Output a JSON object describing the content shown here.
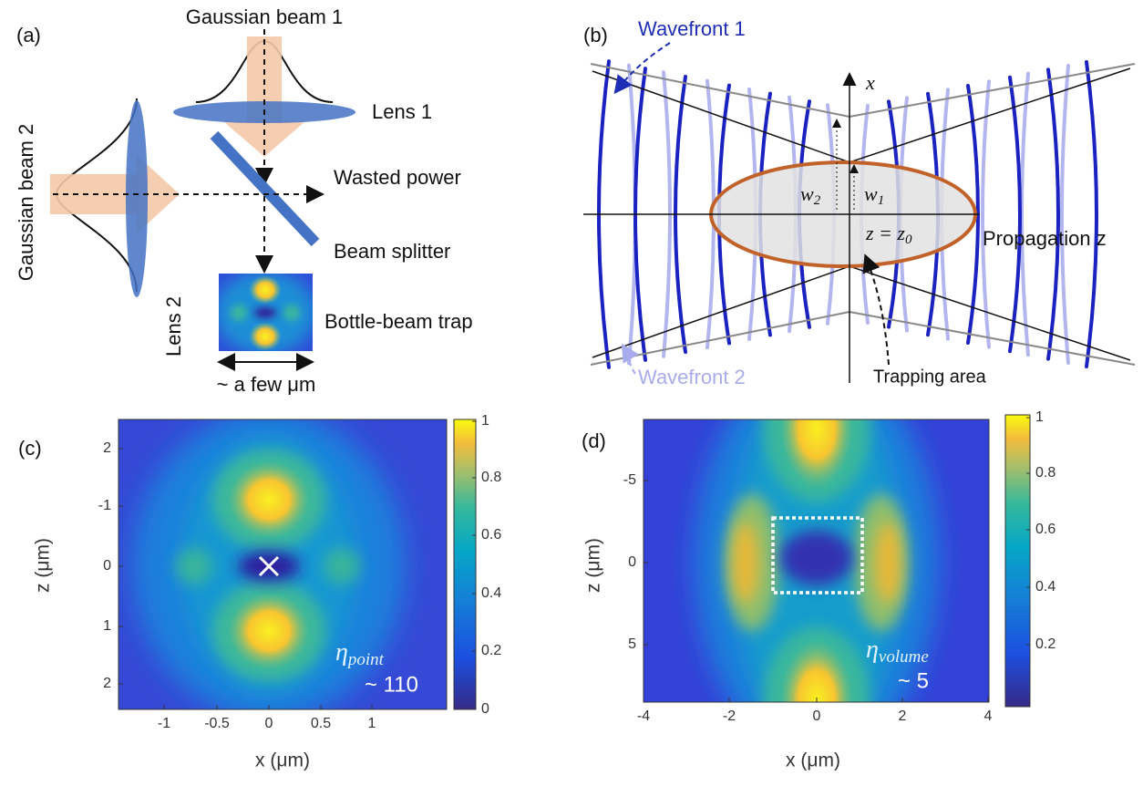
{
  "panel_a": {
    "label": "(a)",
    "gaussian_beam_1": "Gaussian beam 1",
    "gaussian_beam_2": "Gaussian beam 2",
    "lens_1": "Lens 1",
    "lens_2": "Lens 2",
    "wasted_power": "Wasted power",
    "beam_splitter": "Beam splitter",
    "bottle_beam_trap": "Bottle-beam trap",
    "scale": "~ a few μm"
  },
  "panel_b": {
    "label": "(b)",
    "wavefront_1": "Wavefront 1",
    "wavefront_2": "Wavefront 2",
    "axis_x": "x",
    "axis_z": "Propagation z",
    "w1": {
      "symbol": "w",
      "subscript": "1"
    },
    "w2": {
      "symbol": "w",
      "subscript": "2"
    },
    "focus": {
      "text": "z = z",
      "subscript": "0"
    },
    "trapping_area": "Trapping area"
  },
  "panel_c": {
    "label": "(c)",
    "x_ticks": [
      -1,
      -0.5,
      0,
      0.5,
      1
    ],
    "y_ticks": [
      2,
      -1,
      0,
      1,
      2
    ],
    "colorbar_ticks": [
      0,
      0.2,
      0.4,
      0.6,
      0.8,
      1
    ],
    "x_label": "x (μm)",
    "y_label": "z (μm)",
    "eta": {
      "symbol": "η",
      "subscript": "point"
    },
    "factor": "~ 110"
  },
  "panel_d": {
    "label": "(d)",
    "x_ticks": [
      -4,
      -2,
      0,
      2,
      4
    ],
    "y_ticks": [
      -5,
      0,
      5
    ],
    "colorbar_ticks": [
      0.2,
      0.4,
      0.6,
      0.8,
      1
    ],
    "x_label": "x (μm)",
    "y_label": "z (μm)",
    "eta": {
      "symbol": "η",
      "subscript": "volume"
    },
    "factor": "~ 5"
  }
}
